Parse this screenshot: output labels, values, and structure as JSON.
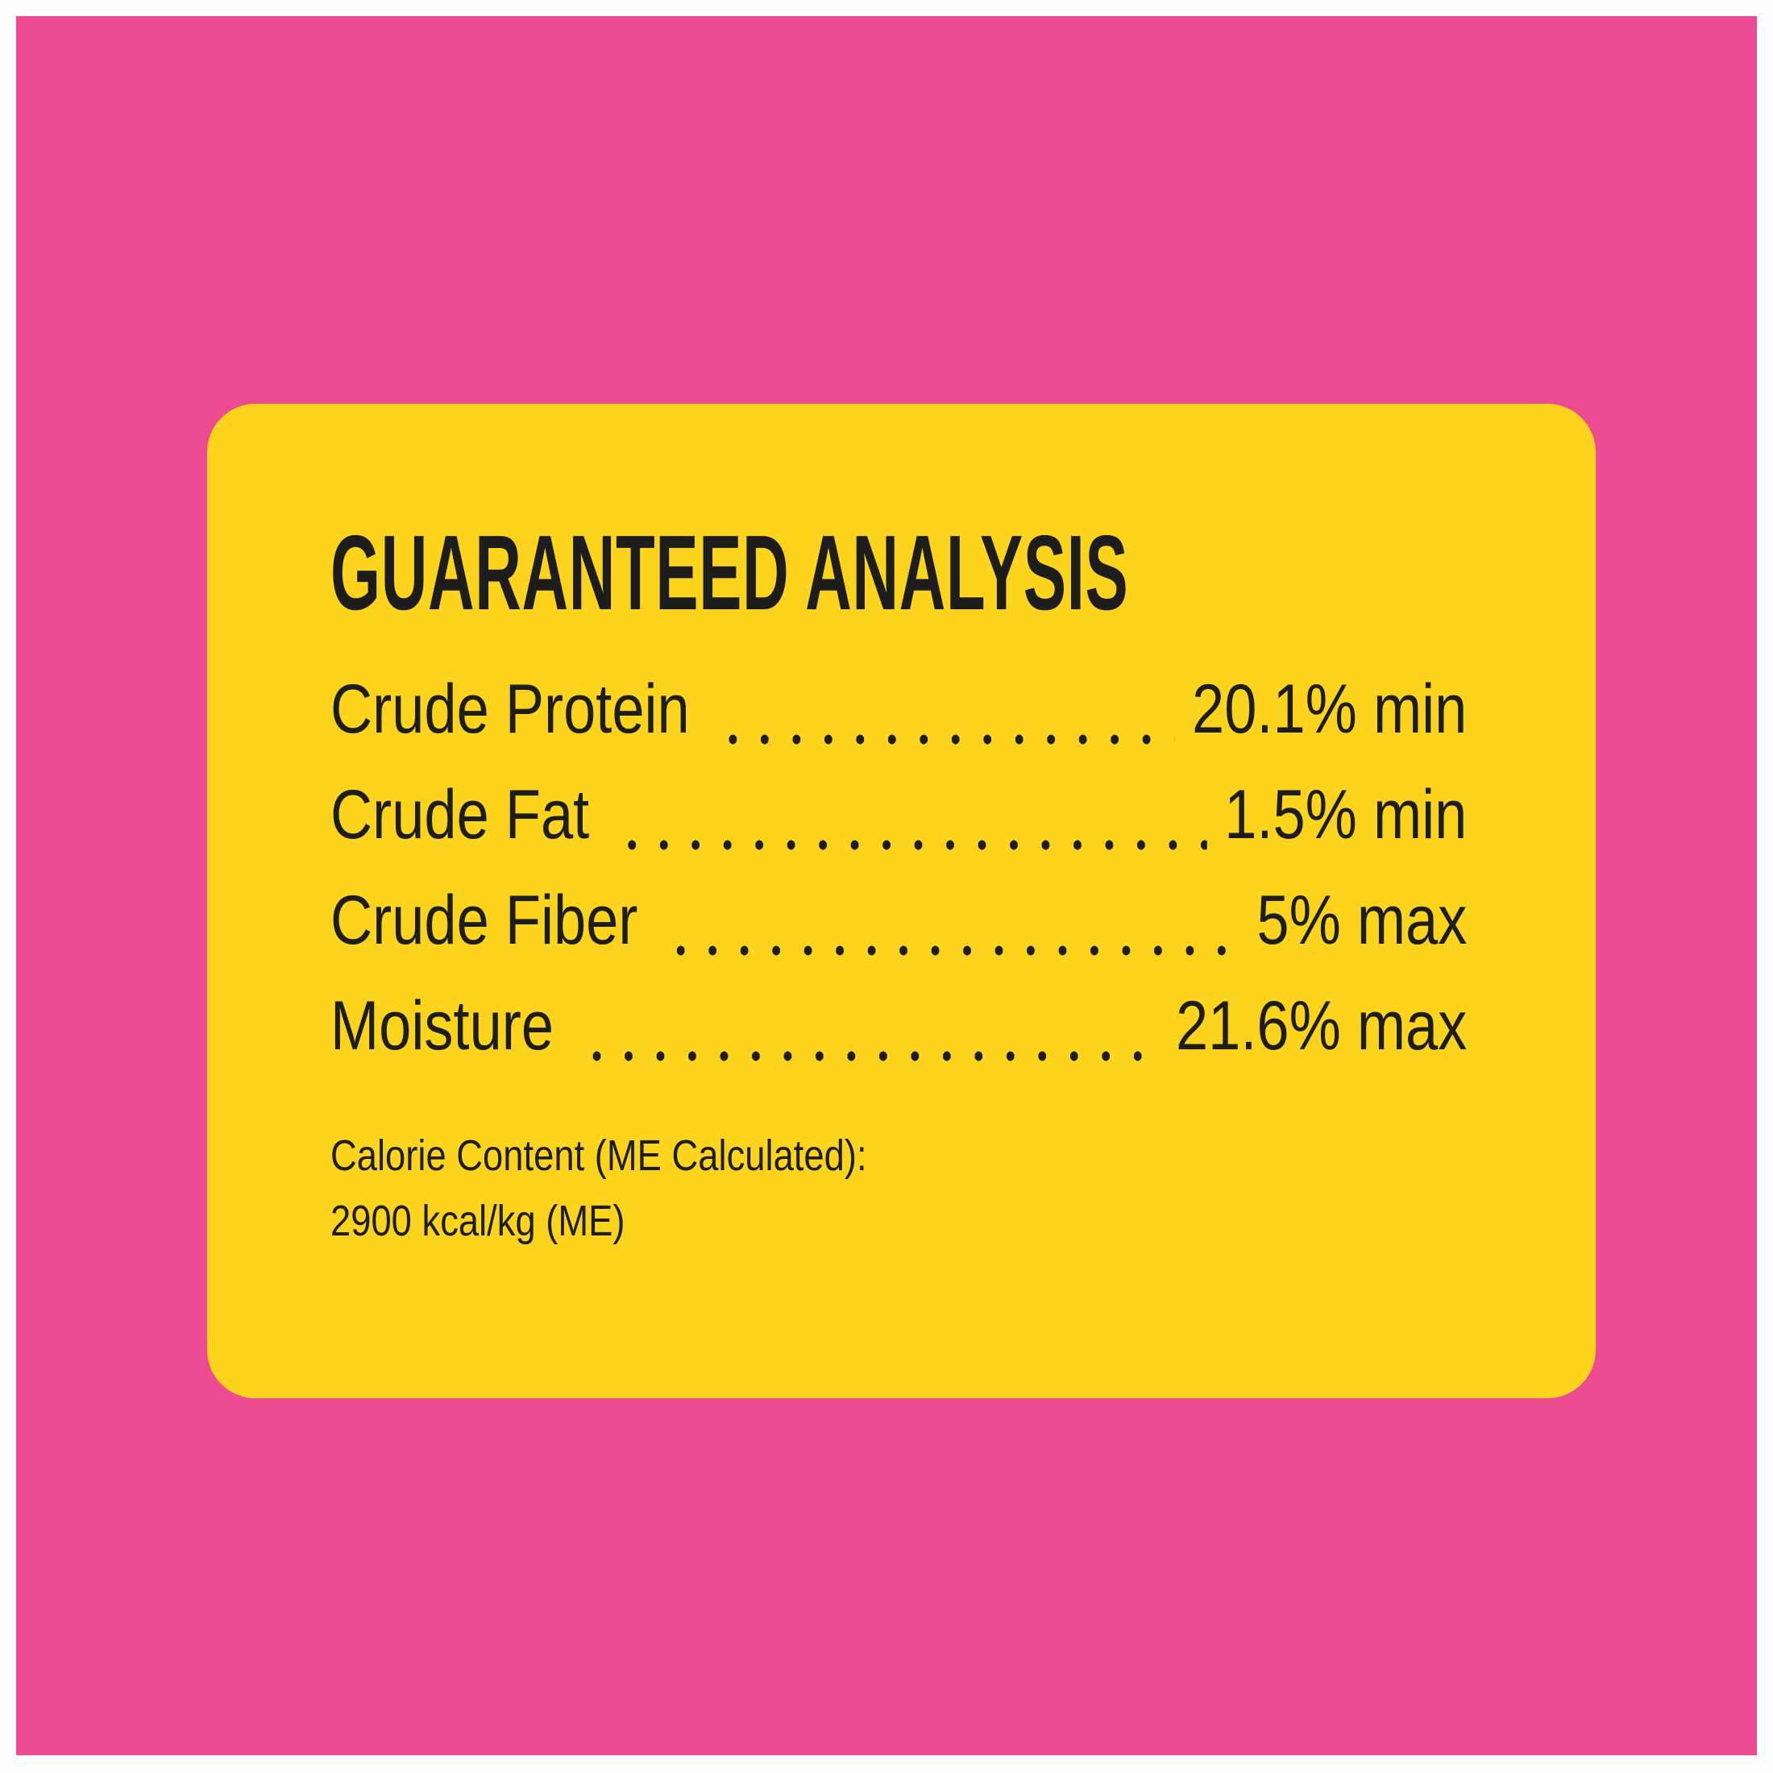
{
  "colors": {
    "page-bg": "#fdfdfd",
    "pink": "#ee4c92",
    "yellow": "#fcd41e",
    "ink": "#1d1d1b"
  },
  "card": {
    "title": "GUARANTEED ANALYSIS",
    "rows": [
      {
        "label": "Crude Protein",
        "value": "20.1% min"
      },
      {
        "label": "Crude Fat",
        "value": "1.5% min"
      },
      {
        "label": "Crude Fiber",
        "value": "5% max"
      },
      {
        "label": "Moisture",
        "value": "21.6% max"
      }
    ],
    "calorie": {
      "line1": "Calorie Content (ME Calculated):",
      "line2": "2900 kcal/kg (ME)"
    }
  }
}
